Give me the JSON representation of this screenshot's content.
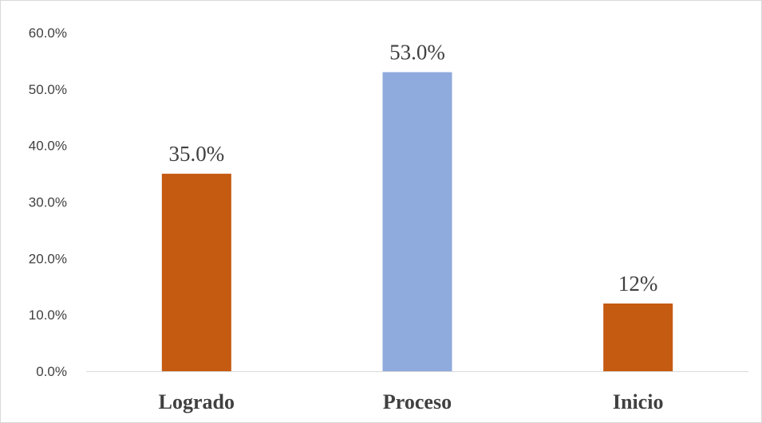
{
  "chart_data": {
    "type": "bar",
    "categories": [
      "Logrado",
      "Proceso",
      "Inicio"
    ],
    "values": [
      35.0,
      53.0,
      12.0
    ],
    "data_labels": [
      "35.0%",
      "53.0%",
      "12%"
    ],
    "bar_colors": [
      "#c55a11",
      "#8faadc",
      "#c55a11"
    ],
    "ylim": [
      0,
      60
    ],
    "yticks": [
      0,
      10,
      20,
      30,
      40,
      50,
      60
    ],
    "ytick_labels": [
      "0.0%",
      "10.0%",
      "20.0%",
      "30.0%",
      "40.0%",
      "50.0%",
      "60.0%"
    ],
    "grid": false,
    "legend": "none",
    "axis_color": "#d9d9d9",
    "text_color": "#404040"
  }
}
